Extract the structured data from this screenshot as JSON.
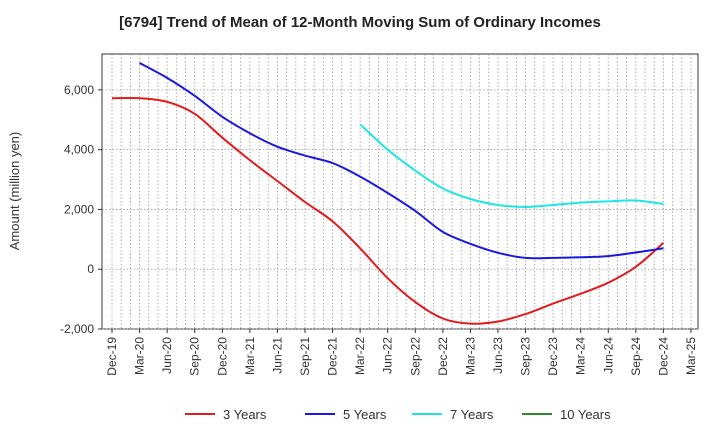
{
  "chart_data": {
    "type": "line",
    "title": "[6794]  Trend of Mean of 12-Month Moving Sum of Ordinary Incomes",
    "xlabel": "",
    "ylabel": "Amount (million yen)",
    "ylim": [
      -2000,
      7200
    ],
    "yticks": [
      -2000,
      0,
      2000,
      4000,
      6000
    ],
    "ytick_labels": [
      "-2,000",
      "0",
      "2,000",
      "4,000",
      "6,000"
    ],
    "x_tick_labels": [
      "Dec-19",
      "Mar-20",
      "Jun-20",
      "Sep-20",
      "Dec-20",
      "Mar-21",
      "Jun-21",
      "Sep-21",
      "Dec-21",
      "Mar-22",
      "Jun-22",
      "Sep-22",
      "Dec-22",
      "Mar-23",
      "Jun-23",
      "Sep-23",
      "Dec-23",
      "Mar-24",
      "Jun-24",
      "Sep-24",
      "Dec-24",
      "Mar-25"
    ],
    "grid": true,
    "legend_position": "bottom",
    "series": [
      {
        "name": "3 Years",
        "color": "#e31a1c",
        "points": [
          [
            0,
            5720
          ],
          [
            1,
            5720
          ],
          [
            2,
            5600
          ],
          [
            3,
            5200
          ],
          [
            4,
            4400
          ],
          [
            5,
            3650
          ],
          [
            6,
            2950
          ],
          [
            7,
            2250
          ],
          [
            8,
            1600
          ],
          [
            9,
            700
          ],
          [
            10,
            -300
          ],
          [
            11,
            -1100
          ],
          [
            12,
            -1650
          ],
          [
            13,
            -1820
          ],
          [
            14,
            -1750
          ],
          [
            15,
            -1500
          ],
          [
            16,
            -1150
          ],
          [
            17,
            -820
          ],
          [
            18,
            -450
          ],
          [
            19,
            80
          ],
          [
            20,
            880
          ]
        ]
      },
      {
        "name": "5 Years",
        "color": "#1a1adc",
        "points": [
          [
            1,
            6900
          ],
          [
            2,
            6400
          ],
          [
            3,
            5800
          ],
          [
            4,
            5100
          ],
          [
            5,
            4550
          ],
          [
            6,
            4100
          ],
          [
            7,
            3800
          ],
          [
            8,
            3550
          ],
          [
            9,
            3100
          ],
          [
            10,
            2550
          ],
          [
            11,
            1950
          ],
          [
            12,
            1250
          ],
          [
            13,
            850
          ],
          [
            14,
            550
          ],
          [
            15,
            380
          ],
          [
            16,
            380
          ],
          [
            17,
            400
          ],
          [
            18,
            440
          ],
          [
            19,
            560
          ],
          [
            20,
            700
          ]
        ]
      },
      {
        "name": "7 Years",
        "color": "#1ee6e6",
        "points": [
          [
            9,
            4850
          ],
          [
            10,
            4000
          ],
          [
            11,
            3300
          ],
          [
            12,
            2700
          ],
          [
            13,
            2350
          ],
          [
            14,
            2150
          ],
          [
            15,
            2080
          ],
          [
            16,
            2150
          ],
          [
            17,
            2230
          ],
          [
            18,
            2270
          ],
          [
            19,
            2300
          ],
          [
            20,
            2180
          ]
        ]
      },
      {
        "name": "10 Years",
        "color": "#2e8b2e",
        "points": []
      }
    ]
  }
}
